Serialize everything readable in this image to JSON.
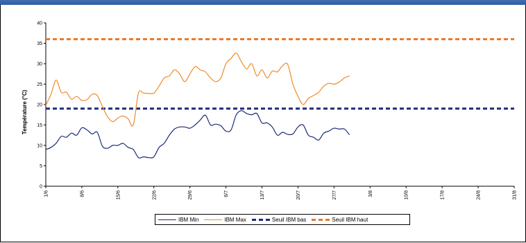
{
  "window": {
    "title_fragment": ""
  },
  "chart_data": {
    "type": "line",
    "title": "",
    "xlabel": "",
    "ylabel": "Température (°C)",
    "ylim": [
      0,
      40
    ],
    "yticks": [
      0,
      5,
      10,
      15,
      20,
      25,
      30,
      35,
      40
    ],
    "x_ticks": [
      "1/6",
      "8/6",
      "15/6",
      "22/6",
      "29/6",
      "6/7",
      "13/7",
      "20/7",
      "27/7",
      "3/8",
      "10/8",
      "17/8",
      "24/8",
      "31/8"
    ],
    "x_days_total": 91,
    "grid": false,
    "legend_position": "bottom",
    "series": [
      {
        "name": "IBM Min",
        "color": "#1b2a78",
        "values": [
          9.0,
          9.5,
          10.5,
          12.2,
          12.0,
          13.0,
          12.5,
          14.3,
          13.8,
          12.8,
          13.2,
          9.8,
          9.3,
          10.0,
          10.0,
          10.5,
          9.5,
          9.0,
          7.0,
          7.2,
          7.0,
          7.2,
          9.5,
          10.5,
          12.5,
          14.0,
          14.5,
          14.5,
          14.2,
          15.0,
          16.2,
          17.4,
          15.0,
          15.2,
          14.8,
          13.5,
          13.8,
          17.5,
          18.5,
          17.8,
          17.5,
          17.8,
          15.5,
          15.5,
          14.5,
          12.5,
          13.2,
          12.7,
          12.8,
          14.5,
          15.0,
          12.5,
          12.0,
          11.3,
          13.0,
          13.5,
          14.2,
          14.0,
          14.0,
          12.6
        ]
      },
      {
        "name": "IBM Max",
        "color": "#f08a28",
        "values": [
          19.8,
          22.5,
          26.0,
          23.0,
          23.0,
          21.3,
          22.0,
          21.0,
          21.2,
          22.5,
          22.2,
          19.5,
          17.0,
          15.8,
          16.7,
          17.2,
          16.5,
          15.0,
          22.8,
          22.8,
          22.7,
          22.8,
          24.5,
          26.5,
          27.0,
          28.5,
          27.5,
          25.6,
          27.5,
          29.3,
          28.5,
          28.0,
          26.5,
          25.6,
          26.5,
          30.0,
          31.3,
          32.6,
          30.5,
          28.7,
          30.0,
          27.0,
          28.5,
          26.5,
          28.2,
          28.0,
          29.5,
          29.8,
          25.0,
          22.0,
          20.0,
          21.5,
          22.2,
          23.0,
          24.5,
          25.2,
          25.0,
          25.5,
          26.5,
          27.0
        ]
      },
      {
        "name": "Seuil IBM bas",
        "color": "#1b2a78",
        "value": 19
      },
      {
        "name": "Seuil IBM haut",
        "color": "#e8782a",
        "value": 36
      }
    ]
  }
}
